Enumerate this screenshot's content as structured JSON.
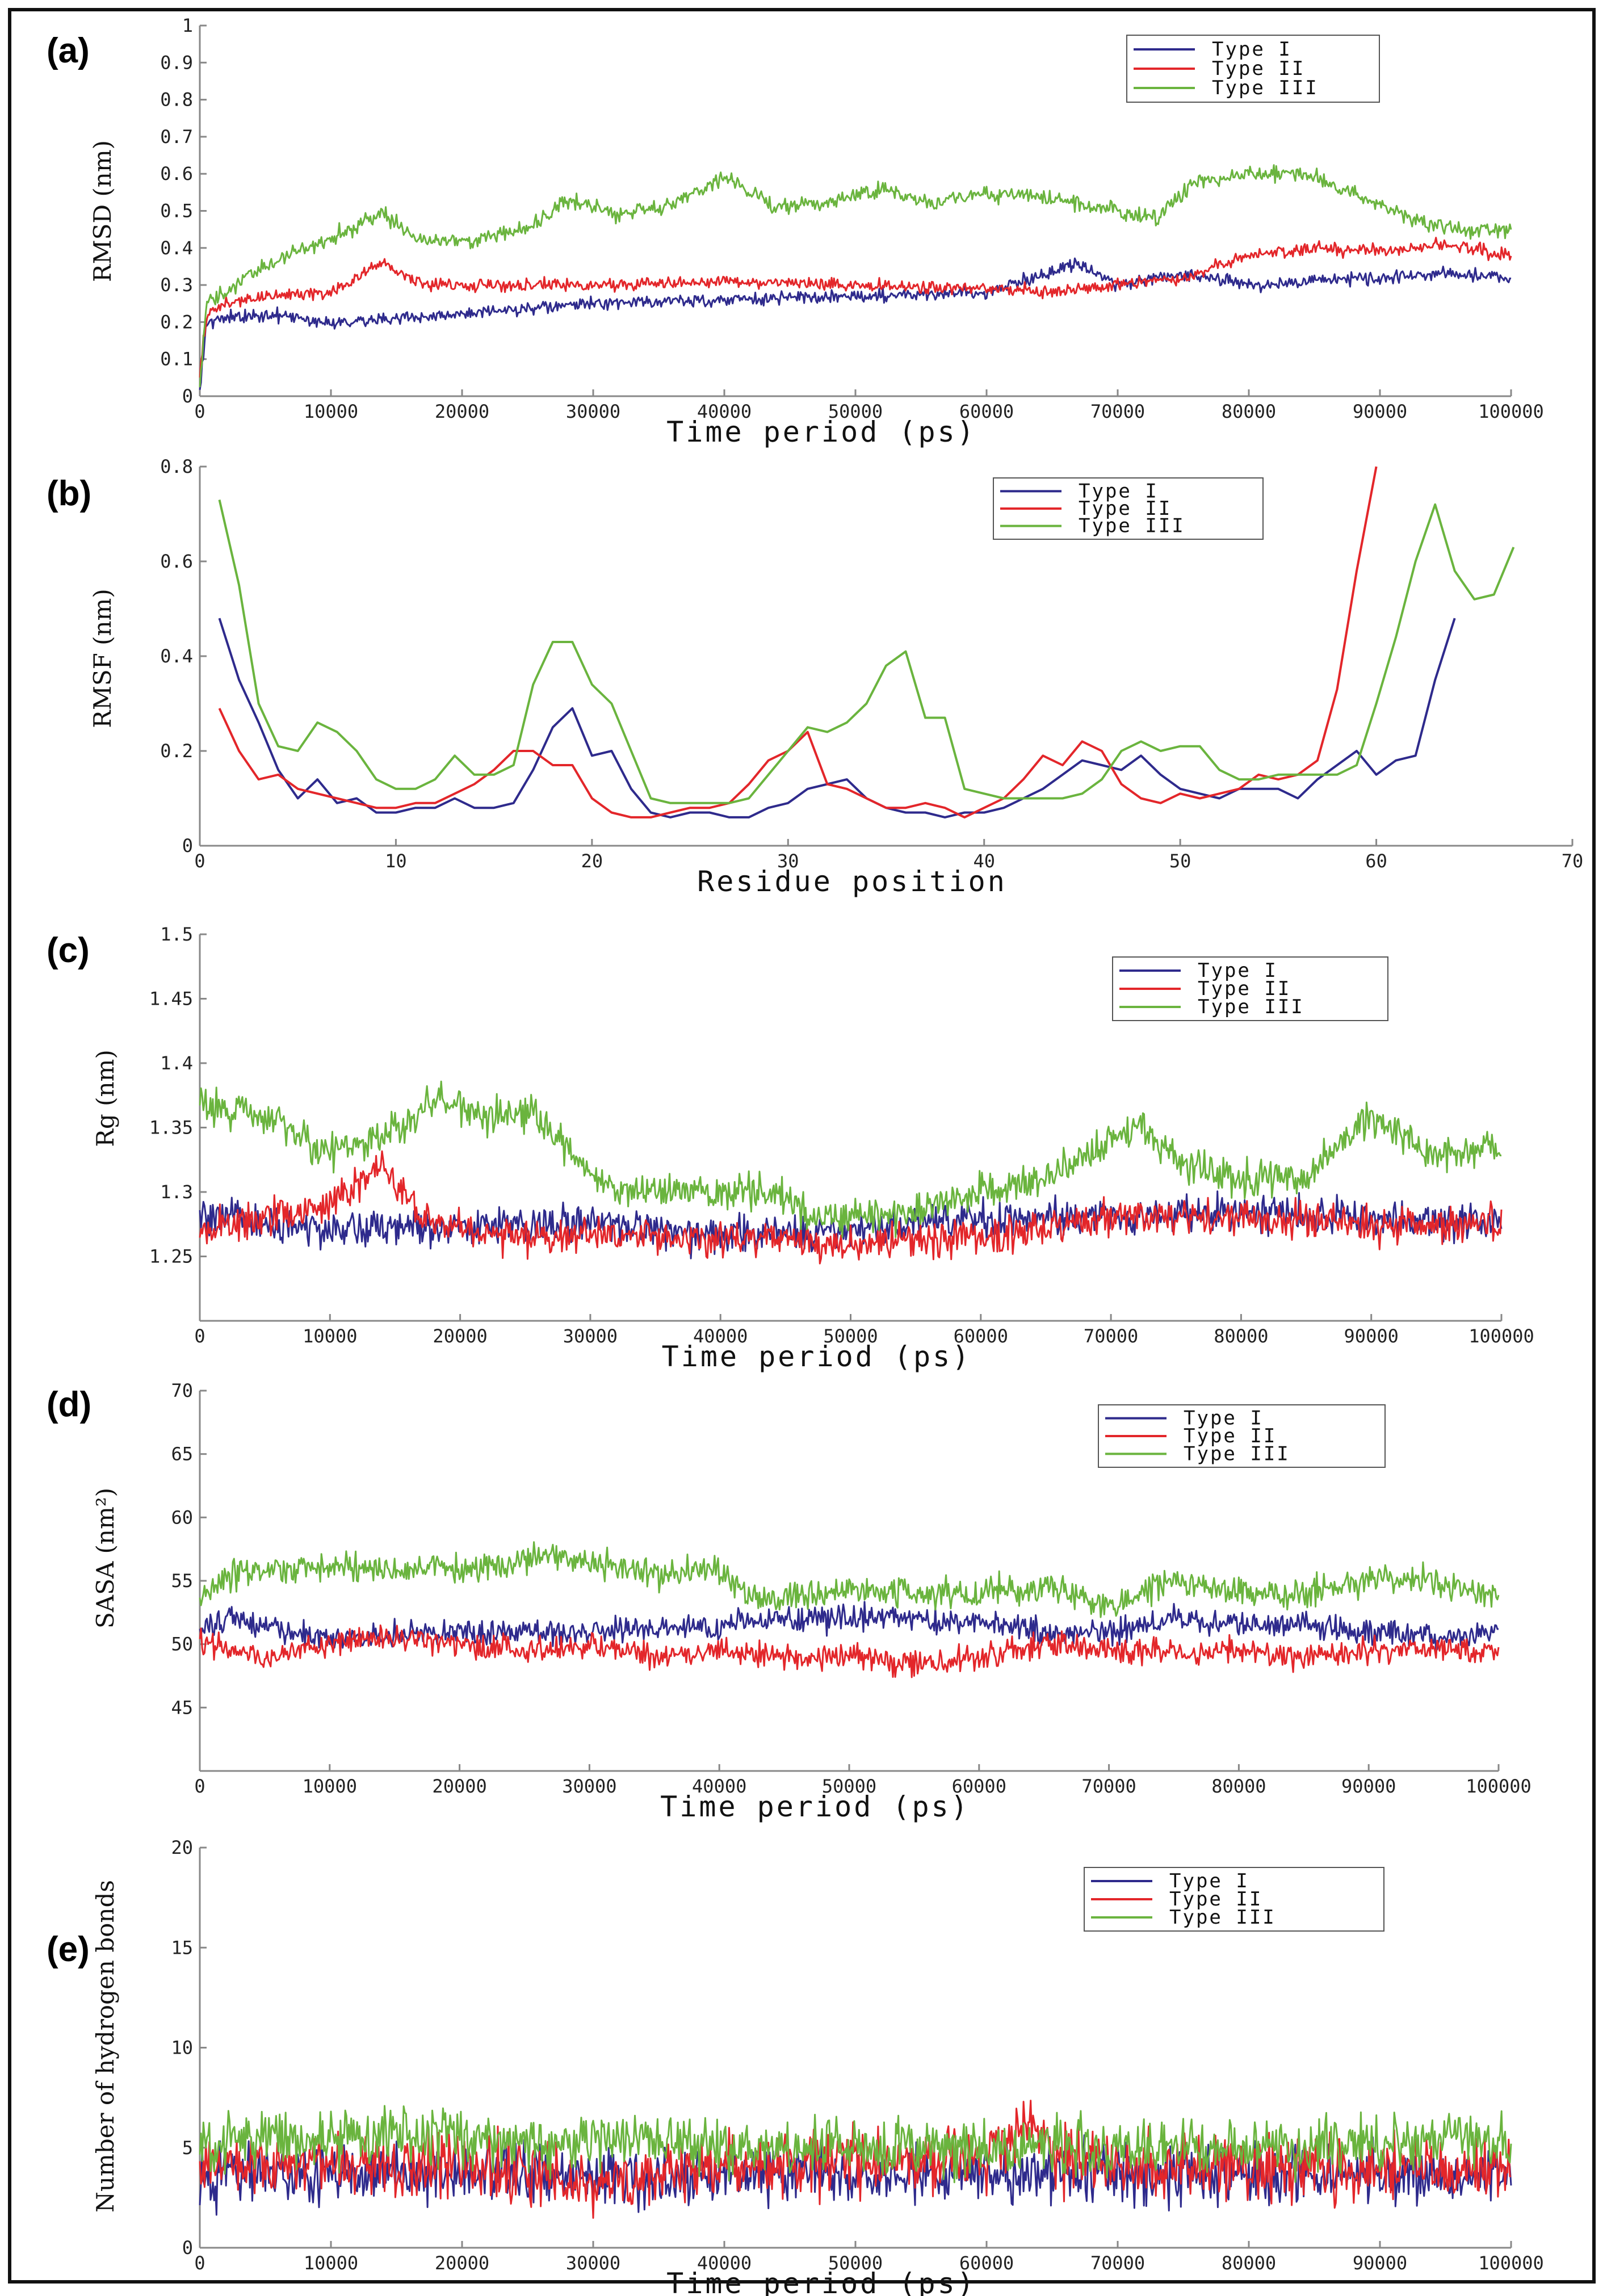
{
  "colors": {
    "type1": "#2e2a8c",
    "type2": "#e3262a",
    "type3": "#6ab43e"
  },
  "chart_data": [
    {
      "id": "a",
      "panel_label": "(a)",
      "type": "line",
      "title": "",
      "xlabel": "Time period (ps)",
      "ylabel": "RMSD (nm)",
      "xlim": [
        0,
        100000
      ],
      "ylim": [
        0,
        1
      ],
      "xticks": [
        0,
        10000,
        20000,
        30000,
        40000,
        50000,
        60000,
        70000,
        80000,
        90000,
        100000
      ],
      "yticks": [
        0,
        0.1,
        0.2,
        0.3,
        0.4,
        0.5,
        0.6,
        0.7,
        0.8,
        0.9,
        1
      ],
      "legend": "top-right",
      "series": [
        {
          "name": "Type I",
          "color_key": "type1",
          "noise": 0.012,
          "x": [
            0,
            500,
            2000,
            5000,
            10000,
            20000,
            30000,
            40000,
            50000,
            60000,
            67000,
            70000,
            75000,
            80000,
            85000,
            90000,
            95000,
            100000
          ],
          "y": [
            0.02,
            0.2,
            0.21,
            0.22,
            0.2,
            0.22,
            0.25,
            0.26,
            0.27,
            0.28,
            0.36,
            0.3,
            0.33,
            0.3,
            0.31,
            0.32,
            0.33,
            0.32
          ]
        },
        {
          "name": "Type II",
          "color_key": "type2",
          "noise": 0.012,
          "x": [
            0,
            500,
            2000,
            5000,
            10000,
            14000,
            17000,
            20000,
            30000,
            40000,
            50000,
            60000,
            65000,
            70000,
            75000,
            80000,
            85000,
            90000,
            95000,
            100000
          ],
          "y": [
            0.05,
            0.22,
            0.25,
            0.27,
            0.28,
            0.36,
            0.3,
            0.3,
            0.3,
            0.31,
            0.3,
            0.29,
            0.28,
            0.3,
            0.32,
            0.38,
            0.4,
            0.39,
            0.41,
            0.38
          ]
        },
        {
          "name": "Type III",
          "color_key": "type3",
          "noise": 0.015,
          "x": [
            0,
            500,
            2000,
            5000,
            10000,
            14000,
            17000,
            20000,
            25000,
            28000,
            32000,
            36000,
            40000,
            44000,
            48000,
            52000,
            56000,
            60000,
            65000,
            70000,
            73000,
            76000,
            80000,
            84000,
            88000,
            92000,
            96000,
            100000
          ],
          "y": [
            0.02,
            0.25,
            0.28,
            0.35,
            0.43,
            0.49,
            0.42,
            0.42,
            0.45,
            0.53,
            0.49,
            0.52,
            0.59,
            0.51,
            0.52,
            0.56,
            0.52,
            0.55,
            0.53,
            0.5,
            0.48,
            0.58,
            0.6,
            0.6,
            0.55,
            0.48,
            0.45,
            0.45
          ]
        }
      ]
    },
    {
      "id": "b",
      "panel_label": "(b)",
      "type": "line",
      "title": "",
      "xlabel": "Residue position",
      "ylabel": "RMSF (nm)",
      "xlim": [
        0,
        70
      ],
      "ylim": [
        0,
        0.8
      ],
      "xticks": [
        0,
        10,
        20,
        30,
        40,
        50,
        60,
        70
      ],
      "yticks": [
        0,
        0.2,
        0.4,
        0.6,
        0.8
      ],
      "legend": "top-right",
      "series": [
        {
          "name": "Type I",
          "color_key": "type1",
          "noise": 0,
          "x": [
            1,
            2,
            3,
            4,
            5,
            6,
            7,
            8,
            9,
            10,
            11,
            12,
            13,
            14,
            15,
            16,
            17,
            18,
            19,
            20,
            21,
            22,
            23,
            24,
            25,
            26,
            27,
            28,
            29,
            30,
            31,
            32,
            33,
            34,
            35,
            36,
            37,
            38,
            39,
            40,
            41,
            42,
            43,
            44,
            45,
            46,
            47,
            48,
            49,
            50,
            51,
            52,
            53,
            54,
            55,
            56,
            57,
            58,
            59,
            60,
            61,
            62,
            63,
            64
          ],
          "y": [
            0.48,
            0.35,
            0.26,
            0.16,
            0.1,
            0.14,
            0.09,
            0.1,
            0.07,
            0.07,
            0.08,
            0.08,
            0.1,
            0.08,
            0.08,
            0.09,
            0.16,
            0.25,
            0.29,
            0.19,
            0.2,
            0.12,
            0.07,
            0.06,
            0.07,
            0.07,
            0.06,
            0.06,
            0.08,
            0.09,
            0.12,
            0.13,
            0.14,
            0.1,
            0.08,
            0.07,
            0.07,
            0.06,
            0.07,
            0.07,
            0.08,
            0.1,
            0.12,
            0.15,
            0.18,
            0.17,
            0.16,
            0.19,
            0.15,
            0.12,
            0.11,
            0.1,
            0.12,
            0.12,
            0.12,
            0.1,
            0.14,
            0.17,
            0.2,
            0.15,
            0.18,
            0.19,
            0.35,
            0.48
          ]
        },
        {
          "name": "Type II",
          "color_key": "type2",
          "noise": 0,
          "x": [
            1,
            2,
            3,
            4,
            5,
            6,
            7,
            8,
            9,
            10,
            11,
            12,
            13,
            14,
            15,
            16,
            17,
            18,
            19,
            20,
            21,
            22,
            23,
            24,
            25,
            26,
            27,
            28,
            29,
            30,
            31,
            32,
            33,
            34,
            35,
            36,
            37,
            38,
            39,
            40,
            41,
            42,
            43,
            44,
            45,
            46,
            47,
            48,
            49,
            50,
            51,
            52,
            53,
            54,
            55,
            56,
            57,
            58,
            59,
            60
          ],
          "y": [
            0.29,
            0.2,
            0.14,
            0.15,
            0.12,
            0.11,
            0.1,
            0.09,
            0.08,
            0.08,
            0.09,
            0.09,
            0.11,
            0.13,
            0.16,
            0.2,
            0.2,
            0.17,
            0.17,
            0.1,
            0.07,
            0.06,
            0.06,
            0.07,
            0.08,
            0.08,
            0.09,
            0.13,
            0.18,
            0.2,
            0.24,
            0.13,
            0.12,
            0.1,
            0.08,
            0.08,
            0.09,
            0.08,
            0.06,
            0.08,
            0.1,
            0.14,
            0.19,
            0.17,
            0.22,
            0.2,
            0.13,
            0.1,
            0.09,
            0.11,
            0.1,
            0.11,
            0.12,
            0.15,
            0.14,
            0.15,
            0.18,
            0.33,
            0.58,
            0.8
          ]
        },
        {
          "name": "Type III",
          "color_key": "type3",
          "noise": 0,
          "x": [
            1,
            2,
            3,
            4,
            5,
            6,
            7,
            8,
            9,
            10,
            11,
            12,
            13,
            14,
            15,
            16,
            17,
            18,
            19,
            20,
            21,
            22,
            23,
            24,
            25,
            26,
            27,
            28,
            29,
            30,
            31,
            32,
            33,
            34,
            35,
            36,
            37,
            38,
            39,
            40,
            41,
            42,
            43,
            44,
            45,
            46,
            47,
            48,
            49,
            50,
            51,
            52,
            53,
            54,
            55,
            56,
            57,
            58,
            59,
            60,
            61,
            62,
            63,
            64,
            65,
            66,
            67
          ],
          "y": [
            0.73,
            0.55,
            0.3,
            0.21,
            0.2,
            0.26,
            0.24,
            0.2,
            0.14,
            0.12,
            0.12,
            0.14,
            0.19,
            0.15,
            0.15,
            0.17,
            0.34,
            0.43,
            0.43,
            0.34,
            0.3,
            0.2,
            0.1,
            0.09,
            0.09,
            0.09,
            0.09,
            0.1,
            0.15,
            0.2,
            0.25,
            0.24,
            0.26,
            0.3,
            0.38,
            0.41,
            0.27,
            0.27,
            0.12,
            0.11,
            0.1,
            0.1,
            0.1,
            0.1,
            0.11,
            0.14,
            0.2,
            0.22,
            0.2,
            0.21,
            0.21,
            0.16,
            0.14,
            0.14,
            0.15,
            0.15,
            0.15,
            0.15,
            0.17,
            0.3,
            0.44,
            0.6,
            0.72,
            0.58,
            0.52,
            0.53,
            0.63
          ]
        }
      ]
    },
    {
      "id": "c",
      "panel_label": "(c)",
      "type": "line",
      "title": "",
      "xlabel": "Time period (ps)",
      "ylabel": "Rg (nm)",
      "xlim": [
        0,
        100000
      ],
      "ylim": [
        1.2,
        1.5
      ],
      "xticks": [
        0,
        10000,
        20000,
        30000,
        40000,
        50000,
        60000,
        70000,
        80000,
        90000,
        100000
      ],
      "yticks": [
        1.25,
        1.3,
        1.35,
        1.4,
        1.45,
        1.5
      ],
      "legend": "top-right",
      "series": [
        {
          "name": "Type I",
          "color_key": "type1",
          "noise": 0.01,
          "x": [
            0,
            10000,
            20000,
            30000,
            40000,
            50000,
            60000,
            70000,
            80000,
            90000,
            100000
          ],
          "y": [
            1.28,
            1.27,
            1.275,
            1.275,
            1.265,
            1.27,
            1.28,
            1.28,
            1.285,
            1.28,
            1.275
          ]
        },
        {
          "name": "Type II",
          "color_key": "type2",
          "noise": 0.01,
          "x": [
            0,
            10000,
            14000,
            17000,
            20000,
            30000,
            40000,
            50000,
            60000,
            70000,
            80000,
            90000,
            100000
          ],
          "y": [
            1.27,
            1.29,
            1.32,
            1.28,
            1.27,
            1.265,
            1.265,
            1.26,
            1.265,
            1.28,
            1.28,
            1.275,
            1.275
          ]
        },
        {
          "name": "Type III",
          "color_key": "type3",
          "noise": 0.01,
          "x": [
            0,
            5000,
            10000,
            15000,
            18000,
            22000,
            26000,
            30000,
            35000,
            40000,
            44000,
            48000,
            52000,
            56000,
            60000,
            65000,
            70000,
            72000,
            76000,
            80000,
            85000,
            88000,
            90000,
            94000,
            97000,
            100000
          ],
          "y": [
            1.37,
            1.36,
            1.33,
            1.35,
            1.37,
            1.36,
            1.36,
            1.31,
            1.3,
            1.3,
            1.3,
            1.28,
            1.28,
            1.29,
            1.3,
            1.31,
            1.34,
            1.35,
            1.32,
            1.31,
            1.31,
            1.34,
            1.36,
            1.33,
            1.33,
            1.33
          ]
        }
      ]
    },
    {
      "id": "d",
      "panel_label": "(d)",
      "type": "line",
      "title": "",
      "xlabel": "Time period (ps)",
      "ylabel": "SASA (nm²)",
      "xlim": [
        0,
        100000
      ],
      "ylim": [
        40,
        70
      ],
      "xticks": [
        0,
        10000,
        20000,
        30000,
        40000,
        50000,
        60000,
        70000,
        80000,
        90000,
        100000
      ],
      "yticks": [
        45,
        50,
        55,
        60,
        65,
        70
      ],
      "legend": "top-right",
      "series": [
        {
          "name": "Type I",
          "color_key": "type1",
          "noise": 0.7,
          "x": [
            0,
            2000,
            10000,
            20000,
            30000,
            40000,
            45000,
            50000,
            55000,
            60000,
            65000,
            70000,
            75000,
            80000,
            85000,
            90000,
            95000,
            100000
          ],
          "y": [
            51,
            52,
            50.5,
            51,
            51,
            51.5,
            52,
            52,
            52,
            51.5,
            51,
            51,
            52,
            51.5,
            51.5,
            51,
            50.5,
            51
          ]
        },
        {
          "name": "Type II",
          "color_key": "type2",
          "noise": 0.7,
          "x": [
            0,
            5000,
            10000,
            15000,
            20000,
            25000,
            30000,
            35000,
            40000,
            45000,
            50000,
            55000,
            60000,
            65000,
            70000,
            75000,
            80000,
            85000,
            90000,
            95000,
            100000
          ],
          "y": [
            50,
            49,
            50,
            50.5,
            50,
            49.5,
            50,
            49,
            49.5,
            49,
            49,
            48.5,
            49,
            50,
            49.5,
            49.5,
            49.5,
            49,
            49.5,
            49.5,
            49.5
          ]
        },
        {
          "name": "Type III",
          "color_key": "type3",
          "noise": 0.8,
          "x": [
            0,
            2000,
            10000,
            20000,
            27000,
            35000,
            40000,
            42000,
            45000,
            50000,
            55000,
            60000,
            65000,
            70000,
            75000,
            80000,
            85000,
            90000,
            95000,
            100000
          ],
          "y": [
            53,
            55.5,
            56,
            56,
            57,
            55.5,
            56,
            54,
            53.5,
            54.5,
            54,
            54,
            54.5,
            53,
            55,
            54,
            54,
            55,
            55,
            53.5
          ]
        }
      ]
    },
    {
      "id": "e",
      "panel_label": "(e)",
      "type": "line",
      "title": "",
      "xlabel": "Time period (ps)",
      "ylabel": "Number of hydrogen bonds",
      "xlim": [
        0,
        100000
      ],
      "ylim": [
        0,
        20
      ],
      "xticks": [
        0,
        10000,
        20000,
        30000,
        40000,
        50000,
        60000,
        70000,
        80000,
        90000,
        100000
      ],
      "yticks": [
        0,
        5,
        10,
        15,
        20
      ],
      "legend": "top-right",
      "series": [
        {
          "name": "Type I",
          "color_key": "type1",
          "noise": 1.0,
          "x": [
            0,
            20000,
            40000,
            60000,
            80000,
            100000
          ],
          "y": [
            3.5,
            3.8,
            3.5,
            3.8,
            3.5,
            3.6
          ]
        },
        {
          "name": "Type II",
          "color_key": "type2",
          "noise": 1.1,
          "x": [
            0,
            20000,
            30000,
            40000,
            60000,
            63000,
            65000,
            80000,
            100000
          ],
          "y": [
            4,
            4.2,
            3.2,
            4,
            4.5,
            6.5,
            4.5,
            4,
            4
          ]
        },
        {
          "name": "Type III",
          "color_key": "type3",
          "noise": 1.0,
          "x": [
            0,
            20000,
            40000,
            60000,
            80000,
            100000
          ],
          "y": [
            5.5,
            5.5,
            5.2,
            5,
            5,
            5.5
          ]
        }
      ]
    }
  ]
}
